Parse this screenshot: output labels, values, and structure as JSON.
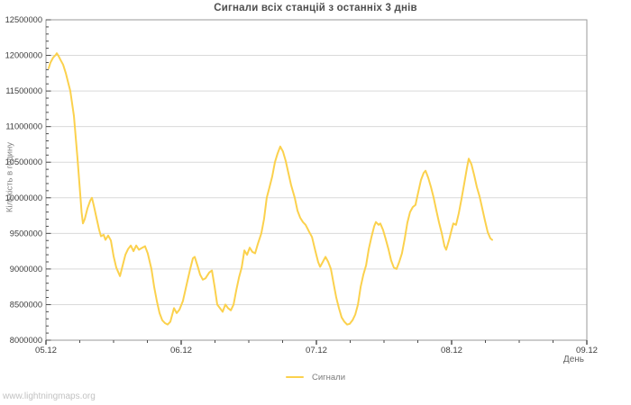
{
  "title": "Сигнали всіх станцій з останніх 3 днів",
  "watermark": "www.lightningmaps.org",
  "colors": {
    "line": "#fbd14d",
    "grid": "#d9d9d9",
    "axis_border": "#9a9a9a",
    "tick": "#4a4a4a",
    "tick_label": "#3d3d3d",
    "title": "#4e4e4e",
    "axis_title": "#828282",
    "legend_text": "#7c7c7c",
    "watermark": "#c2c2c2",
    "background": "#ffffff"
  },
  "chart_data": {
    "type": "line",
    "title": "Сигнали всіх станцій з останніх 3 днів",
    "xlabel": "День",
    "ylabel": "Кількість в годину",
    "xlim_days": [
      0,
      4
    ],
    "ylim": [
      8000000,
      12500000
    ],
    "x_tick_labels": [
      "05.12",
      "06.12",
      "07.12",
      "08.12",
      "09.12"
    ],
    "x_tick_days": [
      0,
      1,
      2,
      3,
      4
    ],
    "x_minor_step_days": 0.25,
    "y_tick_values": [
      8000000,
      8500000,
      9000000,
      9500000,
      10000000,
      10500000,
      11000000,
      11500000,
      12000000,
      12500000
    ],
    "y_tick_labels": [
      "8000000",
      "8500000",
      "9000000",
      "9500000",
      "10000000",
      "10500000",
      "11000000",
      "11500000",
      "12000000",
      "12500000"
    ],
    "y_minor_step": 100000,
    "grid": "horizontal-only",
    "legend_position": "bottom-center",
    "legend": [
      {
        "label": "Сигнали",
        "color": "#fbd14d"
      }
    ],
    "series": [
      {
        "name": "Сигнали",
        "points": [
          [
            0.02,
            11820000
          ],
          [
            0.033,
            11900000
          ],
          [
            0.053,
            11970000
          ],
          [
            0.073,
            12010000
          ],
          [
            0.08,
            12030000
          ],
          [
            0.093,
            11990000
          ],
          [
            0.107,
            11940000
          ],
          [
            0.127,
            11870000
          ],
          [
            0.147,
            11750000
          ],
          [
            0.167,
            11600000
          ],
          [
            0.18,
            11500000
          ],
          [
            0.207,
            11150000
          ],
          [
            0.233,
            10550000
          ],
          [
            0.253,
            10050000
          ],
          [
            0.263,
            9800000
          ],
          [
            0.273,
            9640000
          ],
          [
            0.287,
            9700000
          ],
          [
            0.307,
            9850000
          ],
          [
            0.327,
            9960000
          ],
          [
            0.34,
            10000000
          ],
          [
            0.353,
            9900000
          ],
          [
            0.373,
            9720000
          ],
          [
            0.393,
            9550000
          ],
          [
            0.407,
            9460000
          ],
          [
            0.427,
            9480000
          ],
          [
            0.44,
            9410000
          ],
          [
            0.46,
            9470000
          ],
          [
            0.48,
            9400000
          ],
          [
            0.5,
            9180000
          ],
          [
            0.52,
            9020000
          ],
          [
            0.547,
            8900000
          ],
          [
            0.567,
            9050000
          ],
          [
            0.587,
            9200000
          ],
          [
            0.607,
            9280000
          ],
          [
            0.627,
            9330000
          ],
          [
            0.647,
            9250000
          ],
          [
            0.667,
            9330000
          ],
          [
            0.687,
            9270000
          ],
          [
            0.713,
            9300000
          ],
          [
            0.733,
            9320000
          ],
          [
            0.753,
            9220000
          ],
          [
            0.78,
            9000000
          ],
          [
            0.8,
            8750000
          ],
          [
            0.82,
            8550000
          ],
          [
            0.84,
            8380000
          ],
          [
            0.86,
            8280000
          ],
          [
            0.88,
            8240000
          ],
          [
            0.9,
            8220000
          ],
          [
            0.92,
            8260000
          ],
          [
            0.947,
            8450000
          ],
          [
            0.967,
            8380000
          ],
          [
            0.987,
            8430000
          ],
          [
            1.013,
            8550000
          ],
          [
            1.04,
            8780000
          ],
          [
            1.067,
            9000000
          ],
          [
            1.087,
            9150000
          ],
          [
            1.1,
            9170000
          ],
          [
            1.12,
            9050000
          ],
          [
            1.14,
            8920000
          ],
          [
            1.16,
            8850000
          ],
          [
            1.18,
            8870000
          ],
          [
            1.207,
            8950000
          ],
          [
            1.227,
            8980000
          ],
          [
            1.247,
            8750000
          ],
          [
            1.267,
            8500000
          ],
          [
            1.287,
            8450000
          ],
          [
            1.307,
            8400000
          ],
          [
            1.327,
            8500000
          ],
          [
            1.347,
            8450000
          ],
          [
            1.367,
            8420000
          ],
          [
            1.387,
            8500000
          ],
          [
            1.407,
            8700000
          ],
          [
            1.427,
            8880000
          ],
          [
            1.447,
            9020000
          ],
          [
            1.467,
            9260000
          ],
          [
            1.487,
            9200000
          ],
          [
            1.507,
            9300000
          ],
          [
            1.527,
            9240000
          ],
          [
            1.547,
            9220000
          ],
          [
            1.567,
            9350000
          ],
          [
            1.593,
            9500000
          ],
          [
            1.613,
            9700000
          ],
          [
            1.633,
            10000000
          ],
          [
            1.653,
            10150000
          ],
          [
            1.673,
            10300000
          ],
          [
            1.693,
            10500000
          ],
          [
            1.713,
            10620000
          ],
          [
            1.733,
            10720000
          ],
          [
            1.753,
            10650000
          ],
          [
            1.773,
            10520000
          ],
          [
            1.793,
            10350000
          ],
          [
            1.813,
            10180000
          ],
          [
            1.84,
            10000000
          ],
          [
            1.86,
            9820000
          ],
          [
            1.88,
            9720000
          ],
          [
            1.9,
            9660000
          ],
          [
            1.92,
            9620000
          ],
          [
            1.947,
            9520000
          ],
          [
            1.967,
            9450000
          ],
          [
            1.993,
            9250000
          ],
          [
            2.013,
            9100000
          ],
          [
            2.027,
            9030000
          ],
          [
            2.047,
            9100000
          ],
          [
            2.067,
            9170000
          ],
          [
            2.087,
            9100000
          ],
          [
            2.107,
            9000000
          ],
          [
            2.127,
            8800000
          ],
          [
            2.147,
            8600000
          ],
          [
            2.167,
            8450000
          ],
          [
            2.187,
            8320000
          ],
          [
            2.207,
            8260000
          ],
          [
            2.227,
            8220000
          ],
          [
            2.247,
            8230000
          ],
          [
            2.267,
            8280000
          ],
          [
            2.287,
            8360000
          ],
          [
            2.307,
            8500000
          ],
          [
            2.327,
            8750000
          ],
          [
            2.347,
            8920000
          ],
          [
            2.367,
            9050000
          ],
          [
            2.387,
            9280000
          ],
          [
            2.407,
            9450000
          ],
          [
            2.427,
            9600000
          ],
          [
            2.44,
            9660000
          ],
          [
            2.46,
            9620000
          ],
          [
            2.473,
            9640000
          ],
          [
            2.493,
            9550000
          ],
          [
            2.513,
            9420000
          ],
          [
            2.533,
            9280000
          ],
          [
            2.553,
            9120000
          ],
          [
            2.573,
            9020000
          ],
          [
            2.593,
            9000000
          ],
          [
            2.613,
            9100000
          ],
          [
            2.633,
            9220000
          ],
          [
            2.653,
            9420000
          ],
          [
            2.673,
            9650000
          ],
          [
            2.693,
            9800000
          ],
          [
            2.713,
            9870000
          ],
          [
            2.733,
            9900000
          ],
          [
            2.753,
            10080000
          ],
          [
            2.773,
            10250000
          ],
          [
            2.793,
            10350000
          ],
          [
            2.807,
            10380000
          ],
          [
            2.827,
            10280000
          ],
          [
            2.847,
            10150000
          ],
          [
            2.867,
            10000000
          ],
          [
            2.887,
            9820000
          ],
          [
            2.907,
            9650000
          ],
          [
            2.927,
            9500000
          ],
          [
            2.947,
            9320000
          ],
          [
            2.96,
            9270000
          ],
          [
            2.98,
            9400000
          ],
          [
            3.0,
            9550000
          ],
          [
            3.013,
            9640000
          ],
          [
            3.033,
            9620000
          ],
          [
            3.053,
            9780000
          ],
          [
            3.073,
            9980000
          ],
          [
            3.093,
            10200000
          ],
          [
            3.113,
            10420000
          ],
          [
            3.127,
            10550000
          ],
          [
            3.147,
            10470000
          ],
          [
            3.167,
            10320000
          ],
          [
            3.187,
            10150000
          ],
          [
            3.207,
            10020000
          ],
          [
            3.227,
            9850000
          ],
          [
            3.247,
            9680000
          ],
          [
            3.267,
            9520000
          ],
          [
            3.287,
            9430000
          ],
          [
            3.3,
            9410000
          ]
        ]
      }
    ]
  }
}
